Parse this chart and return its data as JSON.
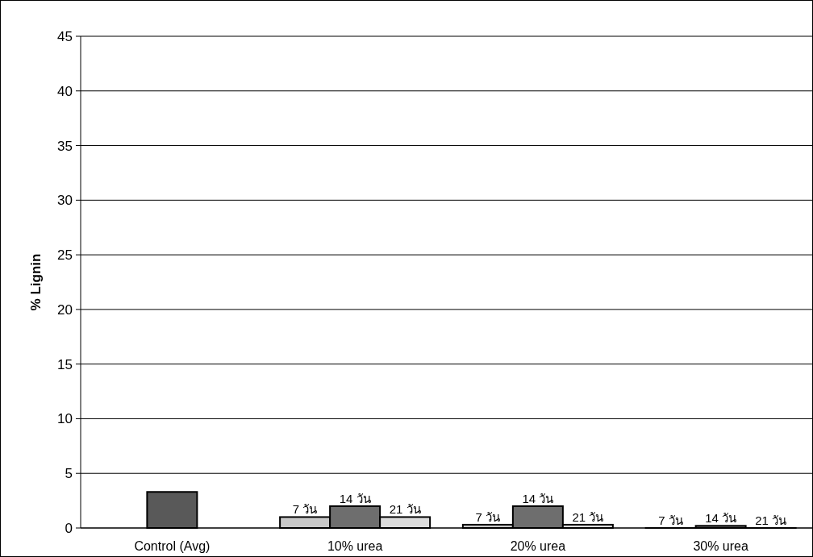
{
  "chart_data": {
    "type": "bar",
    "ylabel": "% Lignin",
    "categories": [
      "Control (Avg)",
      "10% urea",
      "20% urea",
      "30% urea"
    ],
    "series": [
      {
        "color": "#595959",
        "values": [
          3.3,
          null,
          null,
          null
        ]
      },
      {
        "name": "7 วัน",
        "color": "#c8c8c8",
        "values": [
          null,
          1.0,
          0.3,
          0
        ]
      },
      {
        "name": "14 วัน",
        "color": "#6e6e6e",
        "values": [
          null,
          2.0,
          2.0,
          0.2
        ]
      },
      {
        "name": "21 วัน",
        "color": "#dcdcdc",
        "values": [
          null,
          1.0,
          0.3,
          0
        ]
      }
    ],
    "ylim": [
      0,
      45
    ],
    "yticks": [
      0,
      5,
      10,
      15,
      20,
      25,
      30,
      35,
      40,
      45
    ],
    "grid": "y",
    "legend": false
  }
}
